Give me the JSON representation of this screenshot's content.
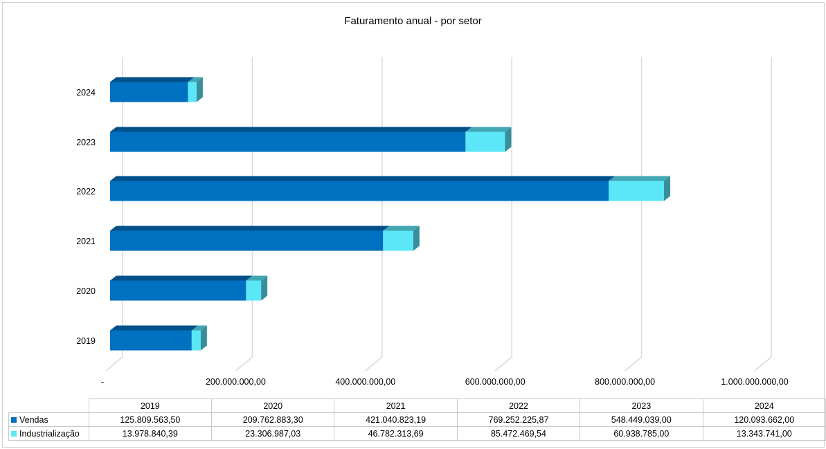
{
  "chart_data": {
    "type": "bar",
    "orientation": "horizontal",
    "stacked": true,
    "style": "3d",
    "title": "Faturamento anual - por setor",
    "categories": [
      "2019",
      "2020",
      "2021",
      "2022",
      "2023",
      "2024"
    ],
    "series": [
      {
        "name": "Vendas",
        "color": "#0070C0",
        "values": [
          125809563.5,
          209762883.3,
          421040823.19,
          769252225.87,
          548449039.0,
          120093662.0
        ],
        "labels": [
          "125.809.563,50",
          "209.762.883,30",
          "421.040.823,19",
          "769.252.225,87",
          "548.449.039,00",
          "120.093.662,00"
        ]
      },
      {
        "name": "Industrialização",
        "color": "#5BE7F8",
        "values": [
          13978840.39,
          23306987.03,
          46782313.69,
          85472469.54,
          60938785.0,
          13343741.0
        ],
        "labels": [
          "13.978.840,39",
          "23.306.987,03",
          "46.782.313,69",
          "85.472.469,54",
          "60.938.785,00",
          "13.343.741,00"
        ]
      }
    ],
    "xlim": [
      0,
      1000000000
    ],
    "xticks": [
      0,
      200000000,
      400000000,
      600000000,
      800000000,
      1000000000
    ],
    "xtick_labels": [
      "-",
      "200.000.000,00",
      "400.000.000,00",
      "600.000.000,00",
      "800.000.000,00",
      "1.000.000.000,00"
    ],
    "grid": true,
    "legend": "data-table"
  }
}
